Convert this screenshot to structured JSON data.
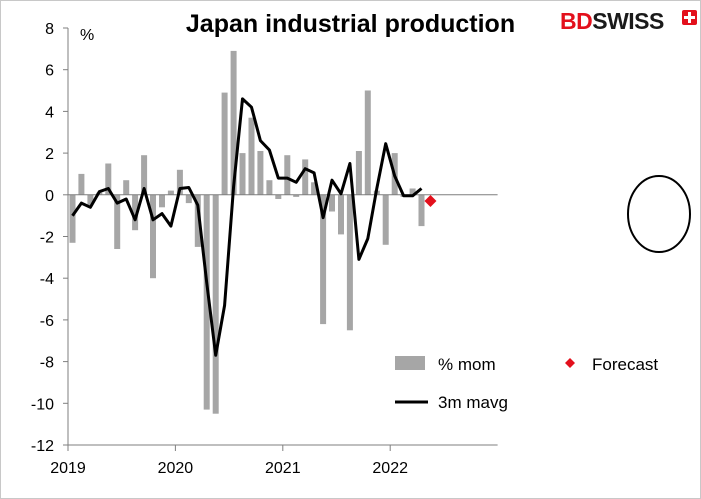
{
  "brand": {
    "logo_text_bd": "BD",
    "logo_text_swiss": "SWISS"
  },
  "colors": {
    "bar": "#a6a6a6",
    "line": "#000000",
    "forecast": "#e3101c",
    "axis": "#7f7f7f"
  },
  "chart_data": {
    "type": "bar+line",
    "title": "Japan industrial production",
    "ylabel": "%",
    "ylim": [
      -12,
      8
    ],
    "yticks": [
      8,
      6,
      4,
      2,
      0,
      -2,
      -4,
      -6,
      -8,
      -10,
      -12
    ],
    "x_labels": [
      "2019",
      "2020",
      "2021",
      "2022"
    ],
    "months": [
      "2019-01",
      "2019-02",
      "2019-03",
      "2019-04",
      "2019-05",
      "2019-06",
      "2019-07",
      "2019-08",
      "2019-09",
      "2019-10",
      "2019-11",
      "2019-12",
      "2020-01",
      "2020-02",
      "2020-03",
      "2020-04",
      "2020-05",
      "2020-06",
      "2020-07",
      "2020-08",
      "2020-09",
      "2020-10",
      "2020-11",
      "2020-12",
      "2021-01",
      "2021-02",
      "2021-03",
      "2021-04",
      "2021-05",
      "2021-06",
      "2021-07",
      "2021-08",
      "2021-09",
      "2021-10",
      "2021-11",
      "2021-12",
      "2022-01",
      "2022-02",
      "2022-03",
      "2022-04"
    ],
    "series": [
      {
        "name": "% mom",
        "type": "bar",
        "values": [
          -2.3,
          1.0,
          -0.5,
          0.1,
          1.5,
          -2.6,
          0.7,
          -1.7,
          1.9,
          -4.0,
          -0.6,
          0.2,
          1.2,
          -0.4,
          -2.5,
          -10.3,
          -10.5,
          4.9,
          6.9,
          2.0,
          3.7,
          2.1,
          0.7,
          -0.2,
          1.9,
          -0.1,
          1.7,
          0.6,
          -6.2,
          -0.8,
          -1.9,
          -6.5,
          2.1,
          5.0,
          0.2,
          -2.4,
          2.0,
          -0.1,
          0.3,
          -1.5
        ]
      },
      {
        "name": "3m mavg",
        "type": "line",
        "values": [
          -1.0,
          -0.4,
          -0.6,
          0.15,
          0.3,
          -0.4,
          -0.2,
          -1.2,
          0.3,
          -1.2,
          -0.9,
          -1.5,
          0.3,
          0.35,
          -0.5,
          -4.2,
          -7.7,
          -5.3,
          0.4,
          4.6,
          4.2,
          2.6,
          2.15,
          0.8,
          0.8,
          0.6,
          1.25,
          1.05,
          -1.1,
          0.7,
          0.05,
          1.5,
          -3.1,
          -2.1,
          0.3,
          2.45,
          0.9,
          -0.05,
          -0.05,
          0.3
        ]
      },
      {
        "name": "Forecast",
        "type": "scatter",
        "x": "2022-05",
        "values": [
          -0.3
        ]
      }
    ],
    "legend": [
      "% mom",
      "Forecast",
      "3m mavg"
    ],
    "legend_position": "bottom-right",
    "annotation": "circle around latest bars and forecast"
  }
}
